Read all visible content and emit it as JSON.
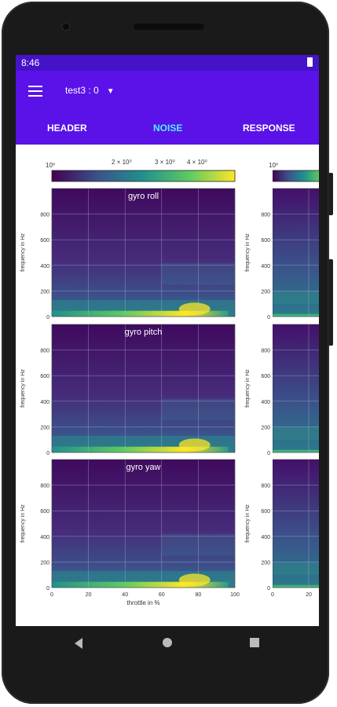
{
  "status": {
    "time": "8:46"
  },
  "appbar": {
    "file_label": "test3 : 0"
  },
  "tabs": [
    {
      "label": "HEADER"
    },
    {
      "label": "NOISE"
    },
    {
      "label": "RESPONSE"
    }
  ],
  "colorbar": {
    "labels": [
      "10⁰",
      "2 × 10⁰",
      "3 × 10⁰",
      "4 × 10⁰"
    ],
    "right_label": "10⁰"
  },
  "plots": {
    "panels": [
      {
        "title": "gyro roll"
      },
      {
        "title": "gyro pitch"
      },
      {
        "title": "gyro yaw"
      }
    ],
    "ylabel": "frequency in Hz",
    "xlabel": "throttle in %",
    "yticks": [
      "0",
      "200",
      "400",
      "600",
      "800"
    ],
    "xticks": [
      "0",
      "20",
      "40",
      "60",
      "80",
      "100"
    ],
    "right_xticks": [
      "0",
      "20"
    ]
  },
  "chart_data": {
    "type": "heatmap",
    "xlabel": "throttle in %",
    "ylabel": "frequency in Hz",
    "xlim": [
      0,
      100
    ],
    "ylim": [
      0,
      1000
    ],
    "series": [
      {
        "name": "gyro roll"
      },
      {
        "name": "gyro pitch"
      },
      {
        "name": "gyro yaw"
      }
    ],
    "colormap": [
      "#440154",
      "#3b528b",
      "#21918c",
      "#5ec962",
      "#fde725"
    ]
  },
  "colors": {
    "appbar": "#5a12e8",
    "statusbar": "#4511c9",
    "active_tab": "#4ff0ff"
  },
  "icons": {
    "menu": "menu-icon",
    "dropdown": "dropdown-arrow-icon",
    "back": "back-icon",
    "home": "home-icon",
    "recents": "recents-icon"
  }
}
